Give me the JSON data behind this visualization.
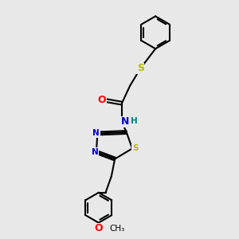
{
  "background_color": "#e8e8e8",
  "bond_color": "#000000",
  "bond_width": 1.5,
  "atom_colors": {
    "C": "#000000",
    "N": "#0000cc",
    "O": "#ff0000",
    "S": "#b8b800",
    "H": "#008080"
  },
  "font_size_atom": 9,
  "font_size_small": 7.5
}
